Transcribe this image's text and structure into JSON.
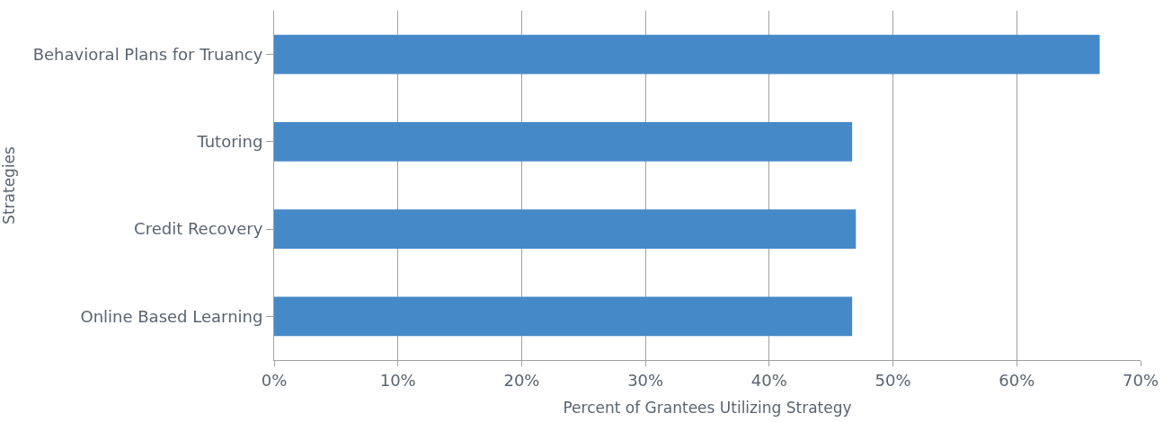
{
  "chart_data": {
    "type": "bar",
    "orientation": "horizontal",
    "categories": [
      "Behavioral Plans for Truancy",
      "Tutoring",
      "Credit Recovery",
      "Online Based Learning"
    ],
    "values": [
      66.7,
      46.7,
      47,
      46.7
    ],
    "color": "#4689c8",
    "xlabel": "Percent of Grantees Utilizing Strategy",
    "ylabel": "Strategies",
    "xlim": [
      0,
      70
    ],
    "xticks": [
      {
        "value": 0,
        "label": "0%"
      },
      {
        "value": 10,
        "label": "10%"
      },
      {
        "value": 20,
        "label": "20%"
      },
      {
        "value": 30,
        "label": "30%"
      },
      {
        "value": 40,
        "label": "40%"
      },
      {
        "value": 50,
        "label": "50%"
      },
      {
        "value": 60,
        "label": "60%"
      },
      {
        "value": 70,
        "label": "70%"
      }
    ],
    "grid": "x",
    "legend": false
  }
}
